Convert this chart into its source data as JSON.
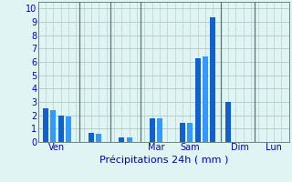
{
  "bar_positions": [
    0,
    1,
    2,
    3,
    6,
    7,
    10,
    11,
    14,
    15,
    18,
    19,
    20,
    21,
    22,
    24
  ],
  "bar_heights": [
    2.5,
    2.4,
    2.0,
    1.9,
    0.65,
    0.6,
    0.35,
    0.35,
    1.8,
    1.75,
    1.45,
    1.4,
    6.3,
    6.4,
    9.35,
    3.0
  ],
  "bar_colors": [
    "#1060d0",
    "#3399ff",
    "#1060d0",
    "#3399ff",
    "#1060d0",
    "#3399ff",
    "#1060d0",
    "#3399ff",
    "#1060d0",
    "#3399ff",
    "#1060d0",
    "#3399ff",
    "#1060d0",
    "#3399ff",
    "#1060d0",
    "#1060d0"
  ],
  "bar_width": 0.7,
  "background_color": "#e0f4f4",
  "grid_color": "#b0c8c8",
  "xlabel": "Précipitations 24h ( mm )",
  "xlabel_color": "#0000cc",
  "xlabel_fontsize": 8,
  "ylabel_ticks": [
    0,
    1,
    2,
    3,
    4,
    5,
    6,
    7,
    8,
    9,
    10
  ],
  "tick_color": "#0000cc",
  "ytick_fontsize": 7,
  "xtick_fontsize": 7,
  "xlim": [
    -1,
    32
  ],
  "ylim": [
    0,
    10.5
  ],
  "day_lines_x": [
    4.5,
    8.5,
    12.5,
    23.0,
    27.5
  ],
  "day_labels": [
    {
      "label": "Ven",
      "x": 1.5
    },
    {
      "label": "Mar",
      "x": 14.5
    },
    {
      "label": "Sam",
      "x": 19.0
    },
    {
      "label": "Dim",
      "x": 25.5
    },
    {
      "label": "Lun",
      "x": 30.0
    }
  ],
  "day_label_color": "#0000cc"
}
